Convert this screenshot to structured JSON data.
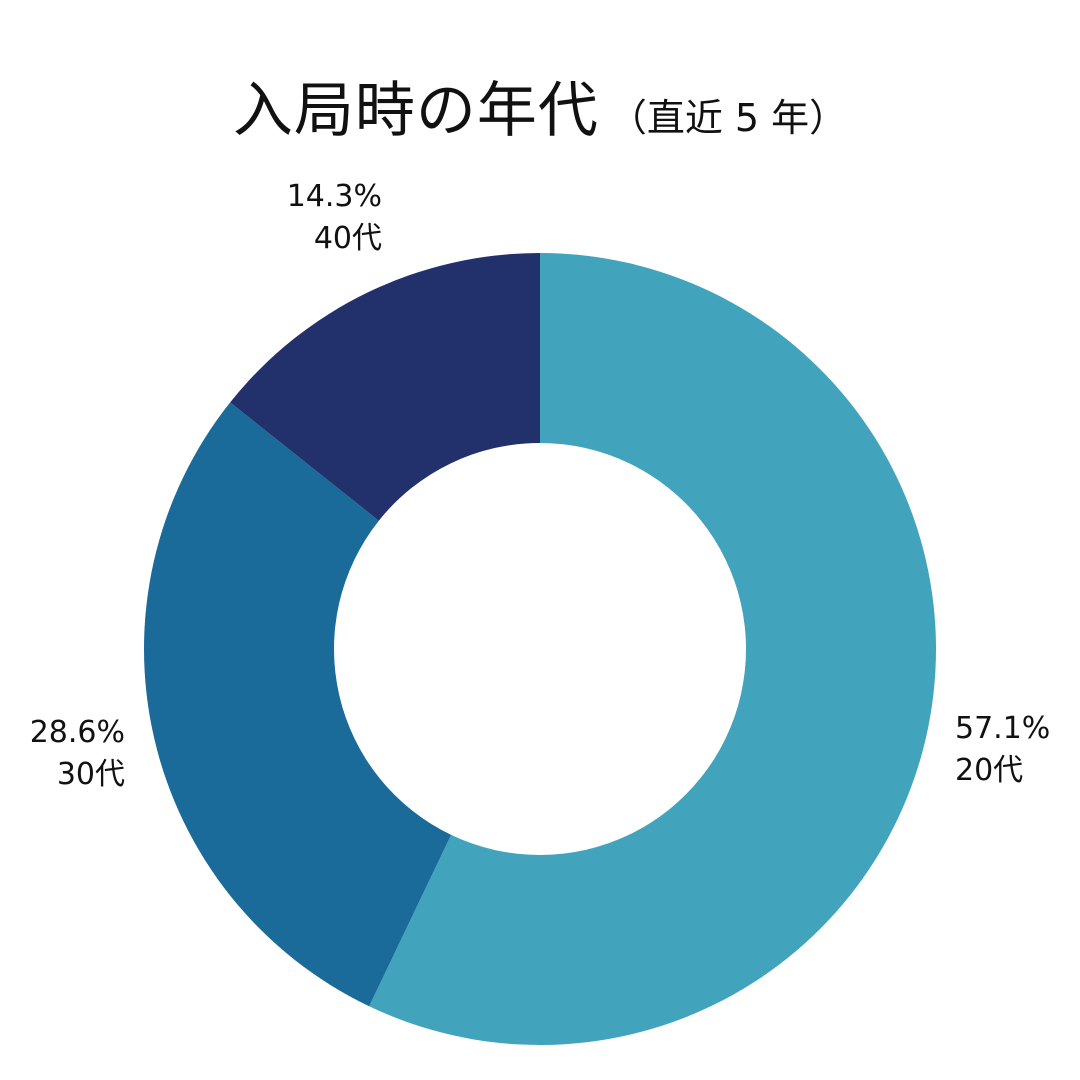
{
  "chart_data": {
    "type": "pie",
    "subtype": "donut",
    "title": "入局時の年代",
    "subtitle": "（直近 5 年）",
    "categories": [
      "20代",
      "30代",
      "40代"
    ],
    "values": [
      57.1,
      28.6,
      14.3
    ],
    "unit": "%",
    "colors": [
      "#41A3BC",
      "#1A6A9A",
      "#22316C"
    ],
    "start_angle": "12 o'clock",
    "direction": "clockwise",
    "legend": "none (direct labels)",
    "labels": [
      {
        "category": "20代",
        "percent": "57.1%"
      },
      {
        "category": "30代",
        "percent": "28.6%"
      },
      {
        "category": "40代",
        "percent": "14.3%"
      }
    ]
  },
  "title": {
    "main": "入局時の年代",
    "sub": "（直近 5 年）"
  }
}
